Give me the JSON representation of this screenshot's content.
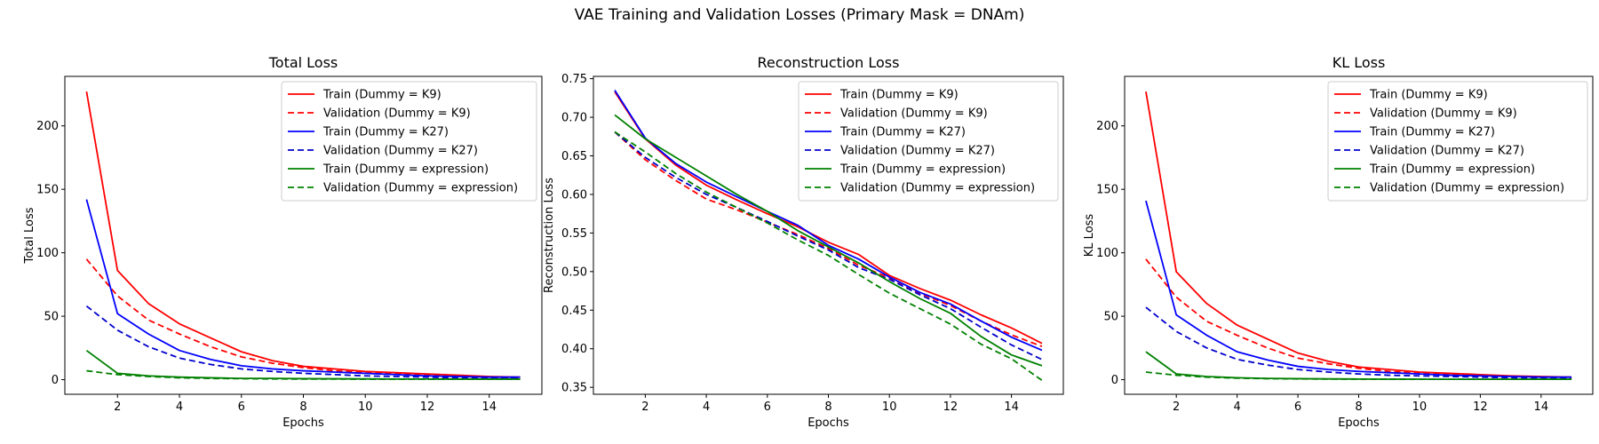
{
  "figure": {
    "suptitle": "VAE Training and Validation Losses (Primary Mask = DNAm)"
  },
  "chart_data": [
    {
      "type": "line",
      "title": "Total Loss",
      "xlabel": "Epochs",
      "ylabel": "Total Loss",
      "xlim": [
        0.3,
        15.7
      ],
      "ylim": [
        -11.5,
        239
      ],
      "xticks": [
        2,
        4,
        6,
        8,
        10,
        12,
        14
      ],
      "yticks": [
        0,
        50,
        100,
        150,
        200
      ],
      "legend_position": "upper right",
      "x": [
        1,
        2,
        3,
        4,
        5,
        6,
        7,
        8,
        9,
        10,
        11,
        12,
        13,
        14,
        15
      ],
      "series": [
        {
          "name": "Train (Dummy = K9)",
          "color": "#ff0000",
          "dashed": false,
          "values": [
            227,
            86,
            60,
            44,
            33,
            22,
            15,
            10.5,
            8.5,
            6.5,
            5.5,
            4.5,
            3.5,
            2.5,
            2
          ]
        },
        {
          "name": "Validation (Dummy = K9)",
          "color": "#ff0000",
          "dashed": true,
          "values": [
            95,
            66,
            47,
            36,
            26,
            18,
            13,
            9.5,
            7,
            5.5,
            4.5,
            3.5,
            2.5,
            2,
            1.5
          ]
        },
        {
          "name": "Train (Dummy = K27)",
          "color": "#0000ff",
          "dashed": false,
          "values": [
            142,
            52,
            36,
            23,
            16,
            11,
            8.5,
            7,
            6,
            5,
            4,
            3,
            2.5,
            2,
            2
          ]
        },
        {
          "name": "Validation (Dummy = K27)",
          "color": "#0000cc",
          "dashed": true,
          "values": [
            58,
            39,
            26,
            17,
            12,
            8.5,
            6.5,
            5,
            4,
            3,
            2.5,
            2,
            1.5,
            1,
            1
          ]
        },
        {
          "name": "Train (Dummy = expression)",
          "color": "#008000",
          "dashed": false,
          "values": [
            23,
            5,
            3,
            2,
            1.5,
            1,
            1,
            0.8,
            0.7,
            0.6,
            0.5,
            0.5,
            0.4,
            0.4,
            0.4
          ]
        },
        {
          "name": "Validation (Dummy = expression)",
          "color": "#008000",
          "dashed": true,
          "values": [
            7,
            4,
            2.5,
            1.5,
            1,
            0.8,
            0.6,
            0.5,
            0.5,
            0.4,
            0.4,
            0.4,
            0.4,
            0.4,
            0.4
          ]
        }
      ]
    },
    {
      "type": "line",
      "title": "Reconstruction Loss",
      "xlabel": "Epochs",
      "ylabel": "Reconstruction Loss",
      "xlim": [
        0.3,
        15.7
      ],
      "ylim": [
        0.341,
        0.753
      ],
      "xticks": [
        2,
        4,
        6,
        8,
        10,
        12,
        14
      ],
      "yticks": [
        0.35,
        0.4,
        0.45,
        0.5,
        0.55,
        0.6,
        0.65,
        0.7,
        0.75
      ],
      "legend_position": "upper right",
      "x": [
        1,
        2,
        3,
        4,
        5,
        6,
        7,
        8,
        9,
        10,
        11,
        12,
        13,
        14,
        15
      ],
      "series": [
        {
          "name": "Train (Dummy = K9)",
          "color": "#ff0000",
          "dashed": false,
          "values": [
            0.733,
            0.672,
            0.638,
            0.612,
            0.593,
            0.575,
            0.558,
            0.538,
            0.522,
            0.495,
            0.478,
            0.463,
            0.444,
            0.427,
            0.407
          ]
        },
        {
          "name": "Validation (Dummy = K9)",
          "color": "#ff0000",
          "dashed": true,
          "values": [
            0.681,
            0.645,
            0.618,
            0.594,
            0.58,
            0.564,
            0.548,
            0.53,
            0.508,
            0.492,
            0.472,
            0.456,
            0.436,
            0.418,
            0.403
          ]
        },
        {
          "name": "Train (Dummy = K27)",
          "color": "#0000ff",
          "dashed": false,
          "values": [
            0.735,
            0.673,
            0.64,
            0.616,
            0.597,
            0.578,
            0.56,
            0.534,
            0.516,
            0.493,
            0.473,
            0.458,
            0.436,
            0.415,
            0.398
          ]
        },
        {
          "name": "Validation (Dummy = K27)",
          "color": "#0000cc",
          "dashed": true,
          "values": [
            0.681,
            0.648,
            0.622,
            0.6,
            0.583,
            0.565,
            0.546,
            0.528,
            0.505,
            0.49,
            0.47,
            0.452,
            0.428,
            0.405,
            0.386
          ]
        },
        {
          "name": "Train (Dummy = expression)",
          "color": "#008000",
          "dashed": false,
          "values": [
            0.703,
            0.672,
            0.648,
            0.624,
            0.6,
            0.578,
            0.553,
            0.532,
            0.511,
            0.487,
            0.465,
            0.446,
            0.416,
            0.392,
            0.378
          ]
        },
        {
          "name": "Validation (Dummy = expression)",
          "color": "#008000",
          "dashed": true,
          "values": [
            0.681,
            0.655,
            0.627,
            0.603,
            0.583,
            0.563,
            0.541,
            0.521,
            0.496,
            0.472,
            0.452,
            0.432,
            0.406,
            0.387,
            0.359
          ]
        }
      ]
    },
    {
      "type": "line",
      "title": "KL Loss",
      "xlabel": "Epochs",
      "ylabel": "KL Loss",
      "xlim": [
        0.3,
        15.7
      ],
      "ylim": [
        -11.5,
        239
      ],
      "xticks": [
        2,
        4,
        6,
        8,
        10,
        12,
        14
      ],
      "yticks": [
        0,
        50,
        100,
        150,
        200
      ],
      "legend_position": "upper right",
      "x": [
        1,
        2,
        3,
        4,
        5,
        6,
        7,
        8,
        9,
        10,
        11,
        12,
        13,
        14,
        15
      ],
      "series": [
        {
          "name": "Train (Dummy = K9)",
          "color": "#ff0000",
          "dashed": false,
          "values": [
            227,
            85,
            60,
            43,
            32,
            21,
            14.5,
            10,
            8,
            6,
            5,
            4,
            3,
            2.5,
            2
          ]
        },
        {
          "name": "Validation (Dummy = K9)",
          "color": "#ff0000",
          "dashed": true,
          "values": [
            95,
            65,
            46,
            35,
            25,
            17,
            12.5,
            9,
            6.5,
            5,
            4,
            3,
            2.5,
            2,
            1.5
          ]
        },
        {
          "name": "Train (Dummy = K27)",
          "color": "#0000ff",
          "dashed": false,
          "values": [
            141,
            51,
            35,
            22,
            15.5,
            10.5,
            8,
            6.5,
            5.5,
            4.5,
            3.5,
            3,
            2.5,
            2,
            2
          ]
        },
        {
          "name": "Validation (Dummy = K27)",
          "color": "#0000cc",
          "dashed": true,
          "values": [
            57,
            38,
            25,
            16,
            11.5,
            8,
            6,
            4.5,
            3.5,
            3,
            2.5,
            2,
            1.5,
            1,
            1
          ]
        },
        {
          "name": "Train (Dummy = expression)",
          "color": "#008000",
          "dashed": false,
          "values": [
            22,
            4.5,
            2.5,
            1.5,
            1,
            0.8,
            0.6,
            0.5,
            0.4,
            0.4,
            0.3,
            0.3,
            0.3,
            0.3,
            0.3
          ]
        },
        {
          "name": "Validation (Dummy = expression)",
          "color": "#008000",
          "dashed": true,
          "values": [
            6,
            3.5,
            2,
            1.2,
            0.8,
            0.6,
            0.5,
            0.4,
            0.4,
            0.3,
            0.3,
            0.3,
            0.3,
            0.3,
            0.3
          ]
        }
      ]
    }
  ]
}
